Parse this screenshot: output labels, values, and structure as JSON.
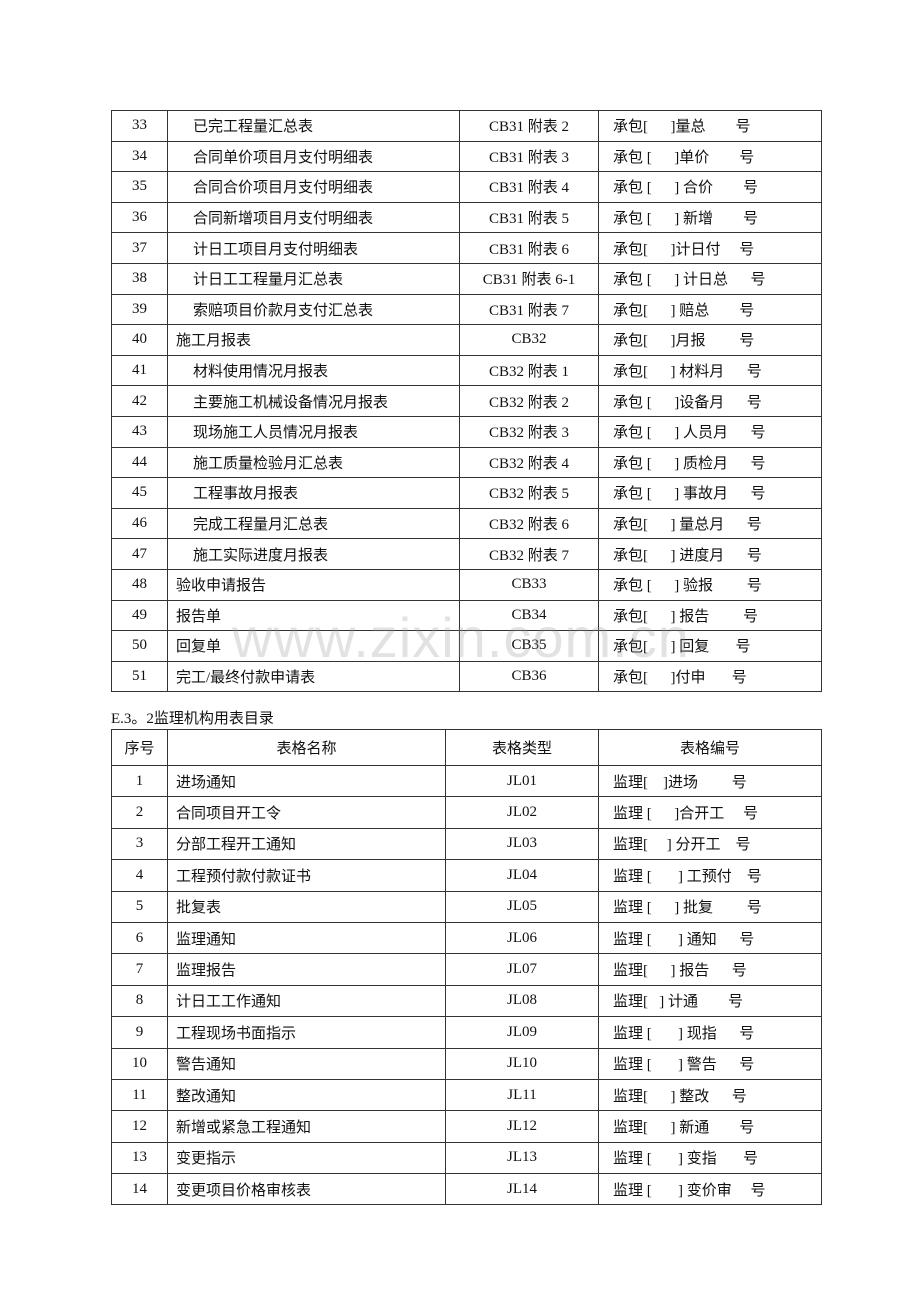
{
  "table1": {
    "rows": [
      {
        "no": "33",
        "name": "已完工程量汇总表",
        "sub": true,
        "type": "CB31 附表 2",
        "code": "承包[      ]量总        号"
      },
      {
        "no": "34",
        "name": "合同单价项目月支付明细表",
        "sub": true,
        "type": "CB31 附表 3",
        "code": "承包 [      ]单价        号"
      },
      {
        "no": "35",
        "name": "合同合价项目月支付明细表",
        "sub": true,
        "type": "CB31 附表 4",
        "code": "承包 [      ] 合价        号"
      },
      {
        "no": "36",
        "name": "合同新增项目月支付明细表",
        "sub": true,
        "type": "CB31 附表 5",
        "code": "承包 [      ] 新增        号"
      },
      {
        "no": "37",
        "name": "计日工项目月支付明细表",
        "sub": true,
        "type": "CB31 附表 6",
        "code": "承包[      ]计日付     号"
      },
      {
        "no": "38",
        "name": "计日工工程量月汇总表",
        "sub": true,
        "type": "CB31 附表 6-1",
        "code": "承包 [      ] 计日总      号"
      },
      {
        "no": "39",
        "name": "索赔项目价款月支付汇总表",
        "sub": true,
        "type": "CB31 附表 7",
        "code": "承包[      ] 赔总        号"
      },
      {
        "no": "40",
        "name": "施工月报表",
        "sub": false,
        "type": "CB32",
        "code": "承包[      ]月报         号"
      },
      {
        "no": "41",
        "name": "材料使用情况月报表",
        "sub": true,
        "type": "CB32 附表 1",
        "code": "承包[      ] 材料月      号"
      },
      {
        "no": "42",
        "name": "主要施工机械设备情况月报表",
        "sub": true,
        "type": "CB32 附表 2",
        "code": "承包 [      ]设备月      号"
      },
      {
        "no": "43",
        "name": "现场施工人员情况月报表",
        "sub": true,
        "type": "CB32 附表 3",
        "code": "承包 [      ] 人员月      号"
      },
      {
        "no": "44",
        "name": "施工质量检验月汇总表",
        "sub": true,
        "type": "CB32 附表 4",
        "code": "承包 [      ] 质检月      号"
      },
      {
        "no": "45",
        "name": "工程事故月报表",
        "sub": true,
        "type": "CB32 附表 5",
        "code": "承包 [      ] 事故月      号"
      },
      {
        "no": "46",
        "name": "完成工程量月汇总表",
        "sub": true,
        "type": "CB32 附表 6",
        "code": "承包[      ] 量总月      号"
      },
      {
        "no": "47",
        "name": "施工实际进度月报表",
        "sub": true,
        "type": "CB32 附表 7",
        "code": "承包[      ] 进度月      号"
      },
      {
        "no": "48",
        "name": "验收申请报告",
        "sub": false,
        "type": "CB33",
        "code": "承包 [      ] 验报         号"
      },
      {
        "no": "49",
        "name": "报告单",
        "sub": false,
        "type": "CB34",
        "code": "承包[      ] 报告         号"
      },
      {
        "no": "50",
        "name": "回复单",
        "sub": false,
        "type": "CB35",
        "code": "承包[      ] 回复       号"
      },
      {
        "no": "51",
        "name": "完工/最终付款申请表",
        "sub": false,
        "type": "CB36",
        "code": "承包[      ]付申       号"
      }
    ]
  },
  "section2": {
    "heading": "E.3。2监理机构用表目录",
    "headers": [
      "序号",
      "表格名称",
      "表格类型",
      "表格编号"
    ],
    "rows": [
      {
        "no": "1",
        "name": "进场通知",
        "type": "JL01",
        "code": "监理[    ]进场         号"
      },
      {
        "no": "2",
        "name": "合同项目开工令",
        "type": "JL02",
        "code": "监理 [      ]合开工     号"
      },
      {
        "no": "3",
        "name": "分部工程开工通知",
        "type": "JL03",
        "code": "监理[     ] 分开工    号"
      },
      {
        "no": "4",
        "name": "工程预付款付款证书",
        "type": "JL04",
        "code": "监理 [       ] 工预付    号"
      },
      {
        "no": "5",
        "name": "批复表",
        "type": "JL05",
        "code": "监理 [      ] 批复         号"
      },
      {
        "no": "6",
        "name": "监理通知",
        "type": "JL06",
        "code": "监理 [       ] 通知      号"
      },
      {
        "no": "7",
        "name": "监理报告",
        "type": "JL07",
        "code": "监理[      ] 报告      号"
      },
      {
        "no": "8",
        "name": "计日工工作通知",
        "type": "JL08",
        "code": "监理[   ] 计通        号"
      },
      {
        "no": "9",
        "name": "工程现场书面指示",
        "type": "JL09",
        "code": "监理 [       ] 现指      号"
      },
      {
        "no": "10",
        "name": "警告通知",
        "type": "JL10",
        "code": "监理 [       ] 警告      号"
      },
      {
        "no": "11",
        "name": "整改通知",
        "type": "JL11",
        "code": "监理[      ] 整改      号"
      },
      {
        "no": "12",
        "name": "新增或紧急工程通知",
        "type": "JL12",
        "code": "监理[      ] 新通        号"
      },
      {
        "no": "13",
        "name": "变更指示",
        "type": "JL13",
        "code": "监理 [       ] 变指       号"
      },
      {
        "no": "14",
        "name": "变更项目价格审核表",
        "type": "JL14",
        "code": "监理 [       ] 变价审     号"
      }
    ]
  },
  "watermark": "www.zixin.com.cn"
}
